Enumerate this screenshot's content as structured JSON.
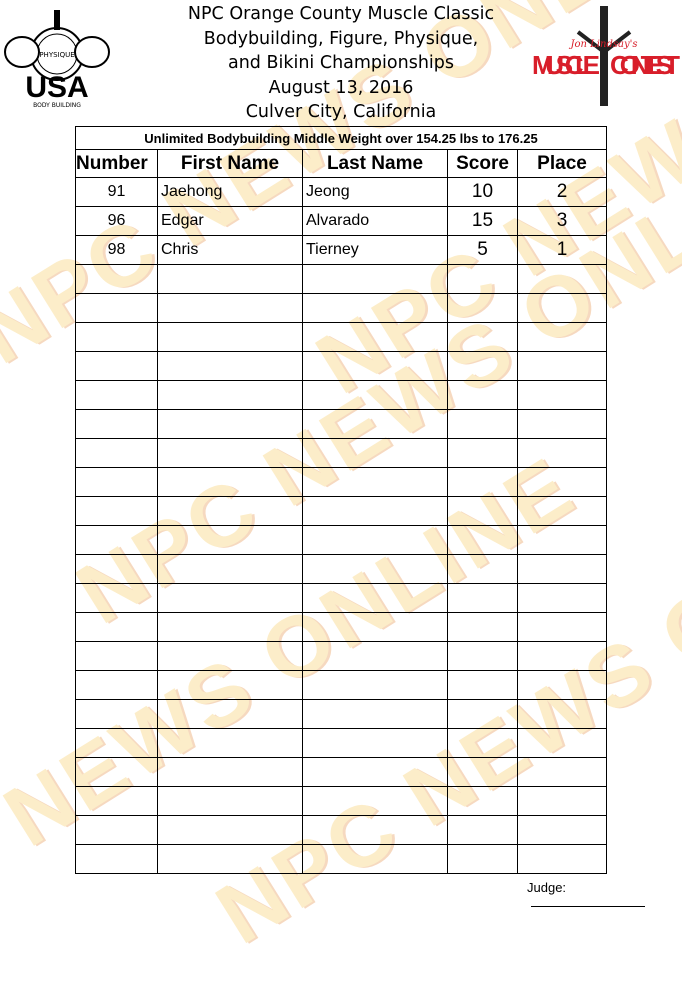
{
  "header": {
    "lines": [
      "NPC Orange County Muscle Classic",
      "Bodybuilding, Figure, Physique,",
      "and Bikini Championships",
      "August 13, 2016",
      "Culver City, California"
    ]
  },
  "logos": {
    "left": {
      "text": [
        "NATIONAL",
        "PHYSIQUE",
        "COMMITTEE",
        "USA",
        "BODY BUILDING"
      ]
    },
    "right": {
      "text": [
        "Jon Lindsay's",
        "MUSCLE",
        "CONTEST"
      ]
    }
  },
  "watermark": "NPC NEWS ONLINE",
  "table": {
    "title": "Unlimited Bodybuilding Middle Weight over 154.25 lbs to 176.25",
    "columns": [
      "Number",
      "First Name",
      "Last Name",
      "Score",
      "Place"
    ],
    "rows": [
      [
        "91",
        "Jaehong",
        "Jeong",
        "10",
        "2"
      ],
      [
        "96",
        "Edgar",
        "Alvarado",
        "15",
        "3"
      ],
      [
        "98",
        "Chris",
        "Tierney",
        "5",
        "1"
      ]
    ],
    "empty_rows": 21
  },
  "footer": {
    "judge_label": "Judge:"
  },
  "colors": {
    "watermark": "#f5c040",
    "logo_red": "#d81e2a"
  }
}
